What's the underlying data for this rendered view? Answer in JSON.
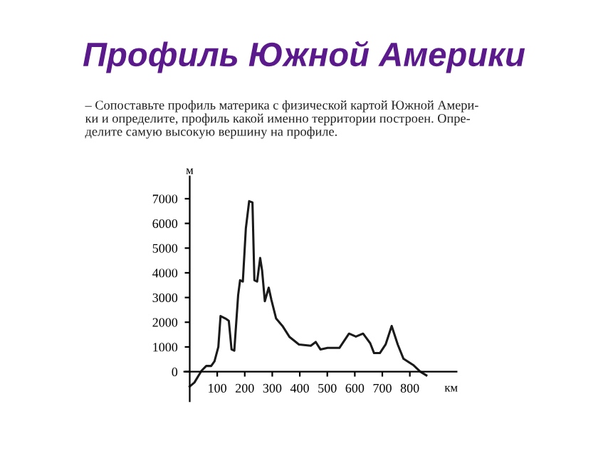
{
  "chart_data": {
    "type": "line",
    "title": "Профиль Южной Америки",
    "annotations": [
      "– Сопоставьте профиль материка с физической картой Южной Амери-\nки и определите, профиль какой именно территории построен. Опре-\nделите самую высокую вершину на профиле."
    ],
    "xlabel": "км",
    "ylabel": "м",
    "series": [
      {
        "color": "#1a1a1a",
        "x": [
          0,
          17,
          43,
          60,
          78,
          90,
          104,
          112,
          130,
          142,
          152,
          162,
          176,
          183,
          193,
          204,
          216,
          228,
          235,
          245,
          256,
          263,
          273,
          287,
          297,
          314,
          337,
          363,
          397,
          440,
          458,
          475,
          501,
          544,
          579,
          604,
          630,
          656,
          670,
          691,
          712,
          734,
          756,
          777,
          812,
          838,
          860
        ],
        "values": [
          -600,
          -440,
          40,
          230,
          230,
          420,
          1000,
          2250,
          2150,
          2060,
          900,
          850,
          3100,
          3700,
          3650,
          5800,
          6900,
          6850,
          3700,
          3650,
          4600,
          4100,
          2850,
          3400,
          2900,
          2150,
          1850,
          1400,
          1100,
          1050,
          1200,
          900,
          960,
          960,
          1540,
          1420,
          1540,
          1150,
          750,
          750,
          1100,
          1850,
          1100,
          520,
          270,
          0,
          -150
        ]
      }
    ],
    "xlim": [
      -20,
      970
    ],
    "ylim": [
      -1200,
      7900
    ],
    "xticks": [
      100,
      200,
      300,
      400,
      500,
      600,
      700,
      800
    ],
    "yticks": [
      0,
      1000,
      2000,
      3000,
      4000,
      5000,
      6000,
      7000
    ],
    "grid": false,
    "legend": false,
    "marker": "none",
    "line_style": "solid"
  }
}
